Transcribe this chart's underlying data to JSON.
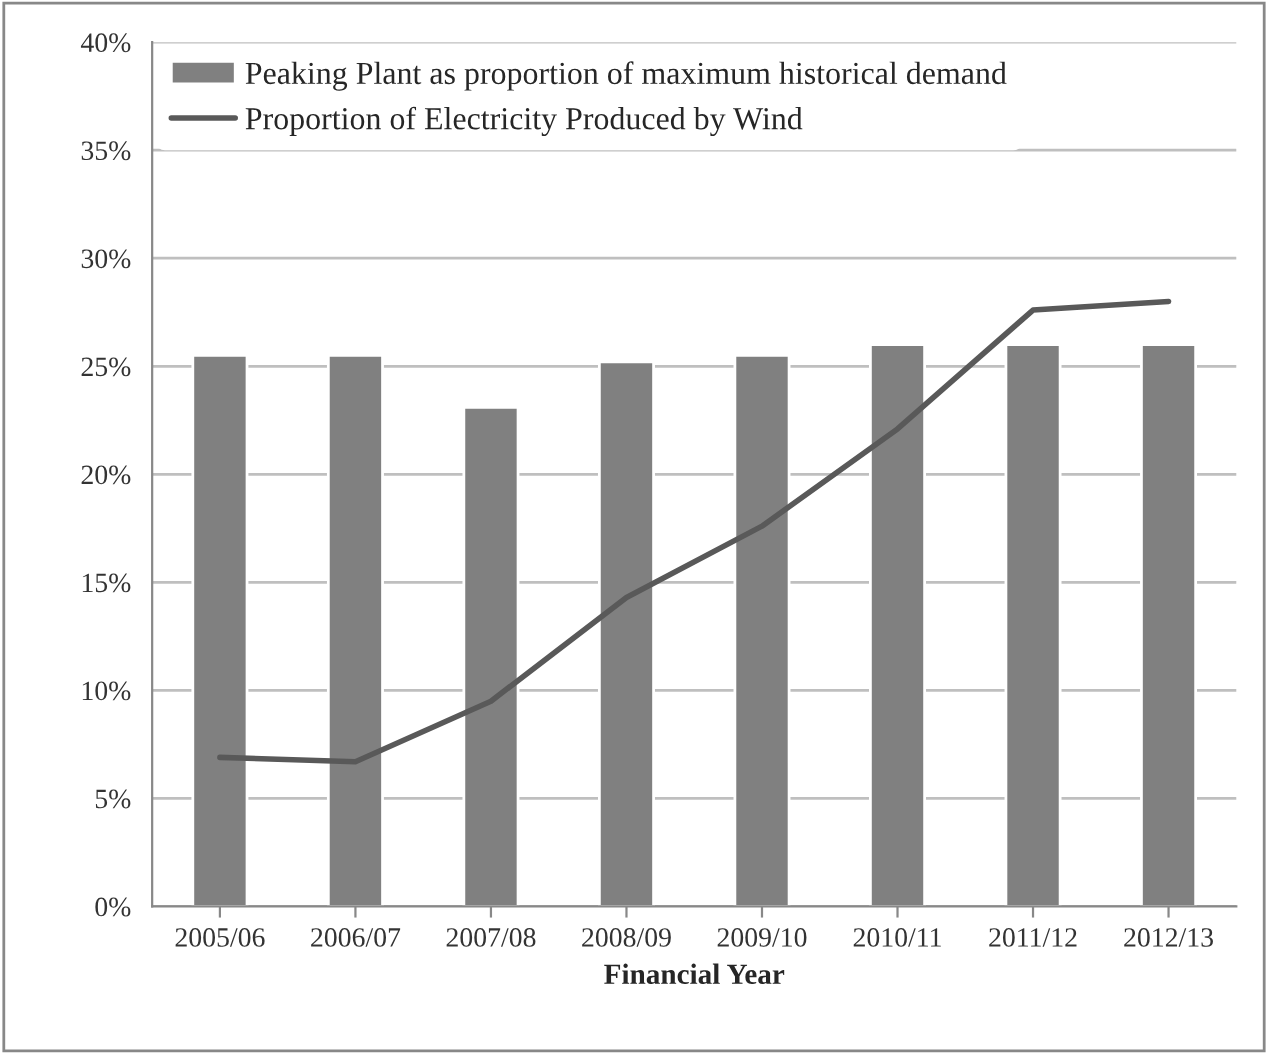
{
  "chart_data": {
    "type": "bar",
    "xlabel": "Financial Year",
    "categories": [
      "2005/06",
      "2006/07",
      "2007/08",
      "2008/09",
      "2009/10",
      "2010/11",
      "2011/12",
      "2012/13"
    ],
    "series": [
      {
        "name": "Peaking Plant as proportion of maximum historical demand",
        "color": "#808080",
        "values": [
          25.5,
          25.5,
          23.1,
          25.2,
          25.5,
          26.0,
          26.0,
          26.0
        ]
      },
      {
        "name": "Proportion of Electricity Produced by Wind",
        "type": "line",
        "color": "#595959",
        "values": [
          6.9,
          6.7,
          9.5,
          14.3,
          17.6,
          22.1,
          27.6,
          28.0
        ]
      }
    ],
    "ylim": [
      0,
      40
    ],
    "yticks": [
      {
        "value": 0,
        "label": "0%"
      },
      {
        "value": 5,
        "label": "5%"
      },
      {
        "value": 10,
        "label": "10%"
      },
      {
        "value": 15,
        "label": "15%"
      },
      {
        "value": 20,
        "label": "20%"
      },
      {
        "value": 25,
        "label": "25%"
      },
      {
        "value": 30,
        "label": "30%"
      },
      {
        "value": 35,
        "label": "35%"
      },
      {
        "value": 40,
        "label": "40%"
      }
    ],
    "grid": "y",
    "legend": "top left"
  }
}
